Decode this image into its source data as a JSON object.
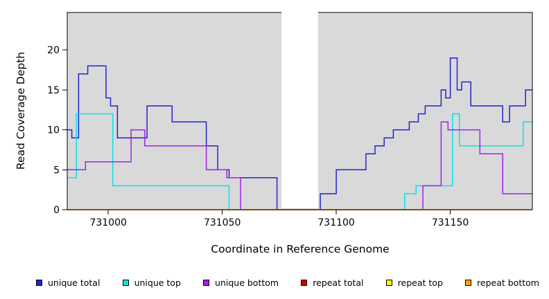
{
  "chart_data": {
    "type": "line",
    "subtype": "step",
    "title": "",
    "xlabel": "Coordinate in Reference Genome",
    "ylabel": "Read Coverage Depth",
    "xlim": [
      730982,
      731186
    ],
    "ylim": [
      0,
      24.7
    ],
    "x_ticks": [
      731000,
      731050,
      731100,
      731150
    ],
    "y_ticks": [
      0,
      5,
      10,
      15,
      20
    ],
    "grid": false,
    "plot_bg": "#d9d9d9",
    "gap_region": {
      "x_start": 731076,
      "x_end": 731092
    },
    "legend_position": "bottom",
    "series": [
      {
        "name": "unique total",
        "color": "#2323CE",
        "points": [
          [
            730982,
            10
          ],
          [
            730984,
            9
          ],
          [
            730987,
            17
          ],
          [
            730991,
            18
          ],
          [
            730999,
            14
          ],
          [
            731001,
            13
          ],
          [
            731004,
            9
          ],
          [
            731017,
            13
          ],
          [
            731028,
            11
          ],
          [
            731043,
            8
          ],
          [
            731048,
            5
          ],
          [
            731053,
            4
          ],
          [
            731074,
            0
          ],
          [
            731093,
            2
          ],
          [
            731100,
            5
          ],
          [
            731113,
            7
          ],
          [
            731117,
            8
          ],
          [
            731121,
            9
          ],
          [
            731125,
            10
          ],
          [
            731132,
            11
          ],
          [
            731136,
            12
          ],
          [
            731139,
            13
          ],
          [
            731146,
            15
          ],
          [
            731148,
            14
          ],
          [
            731150,
            19
          ],
          [
            731153,
            15
          ],
          [
            731155,
            16
          ],
          [
            731159,
            13
          ],
          [
            731173,
            11
          ],
          [
            731176,
            13
          ],
          [
            731183,
            15
          ]
        ]
      },
      {
        "name": "unique top",
        "color": "#00E5EE",
        "points": [
          [
            730982,
            4
          ],
          [
            730986,
            12
          ],
          [
            731002,
            3
          ],
          [
            731053,
            0
          ],
          [
            731130,
            2
          ],
          [
            731135,
            3
          ],
          [
            731151,
            12
          ],
          [
            731154,
            8
          ],
          [
            731182,
            11
          ]
        ]
      },
      {
        "name": "unique bottom",
        "color": "#A020F0",
        "points": [
          [
            730982,
            5
          ],
          [
            730990,
            6
          ],
          [
            731010,
            10
          ],
          [
            731016,
            8
          ],
          [
            731043,
            5
          ],
          [
            731052,
            4
          ],
          [
            731058,
            0
          ],
          [
            731138,
            3
          ],
          [
            731146,
            11
          ],
          [
            731149,
            10
          ],
          [
            731163,
            7
          ],
          [
            731173,
            2
          ]
        ]
      },
      {
        "name": "repeat total",
        "color": "#CD0000",
        "points": [
          [
            730982,
            0
          ]
        ]
      },
      {
        "name": "repeat top",
        "color": "#FFFF00",
        "points": [
          [
            730982,
            0
          ]
        ]
      },
      {
        "name": "repeat bottom",
        "color": "#FFA500",
        "points": [
          [
            730982,
            0
          ]
        ]
      }
    ]
  },
  "legend": {
    "items": [
      {
        "label": "unique total",
        "color": "#2323CE"
      },
      {
        "label": "unique top",
        "color": "#00E5EE"
      },
      {
        "label": "unique bottom",
        "color": "#A020F0"
      },
      {
        "label": "repeat total",
        "color": "#CD0000"
      },
      {
        "label": "repeat top",
        "color": "#FFFF00"
      },
      {
        "label": "repeat bottom",
        "color": "#FFA500"
      }
    ]
  }
}
